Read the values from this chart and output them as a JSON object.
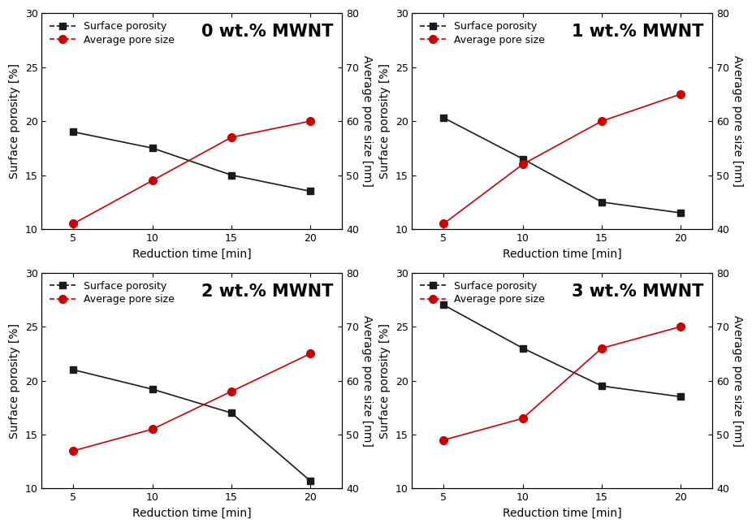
{
  "x": [
    5,
    10,
    15,
    20
  ],
  "panels": [
    {
      "title": "0 wt.% MWNT",
      "surface_porosity": [
        19.0,
        17.5,
        15.0,
        13.5
      ],
      "avg_pore_size": [
        41.0,
        49.0,
        57.0,
        60.0
      ]
    },
    {
      "title": "1 wt.% MWNT",
      "surface_porosity": [
        20.3,
        16.5,
        12.5,
        11.5
      ],
      "avg_pore_size": [
        41.0,
        52.0,
        60.0,
        65.0
      ]
    },
    {
      "title": "2 wt.% MWNT",
      "surface_porosity": [
        21.0,
        19.2,
        17.0,
        10.7
      ],
      "avg_pore_size": [
        47.0,
        51.0,
        58.0,
        65.0
      ]
    },
    {
      "title": "3 wt.% MWNT",
      "surface_porosity": [
        27.0,
        23.0,
        19.5,
        18.5
      ],
      "avg_pore_size": [
        49.0,
        53.0,
        66.0,
        70.0
      ]
    }
  ],
  "ylim_left": [
    10,
    30
  ],
  "ylim_right": [
    40,
    80
  ],
  "yticks_left": [
    10,
    15,
    20,
    25,
    30
  ],
  "yticks_right": [
    40,
    50,
    60,
    70,
    80
  ],
  "xlim": [
    3,
    22
  ],
  "xticks": [
    5,
    10,
    15,
    20
  ],
  "xlabel": "Reduction time [min]",
  "ylabel_left": "Surface porosity [%]",
  "ylabel_right": "Average pore size [nm]",
  "legend_porosity": "Surface porosity",
  "legend_poresize": "Average pore size",
  "color_porosity": "#1a1a1a",
  "color_poresize": "#cc0000",
  "bg_color": "#ffffff",
  "title_fontsize": 15,
  "label_fontsize": 10,
  "tick_fontsize": 9,
  "legend_fontsize": 9,
  "linewidth": 1.2,
  "marker_size_sq": 6,
  "marker_size_circ": 7
}
